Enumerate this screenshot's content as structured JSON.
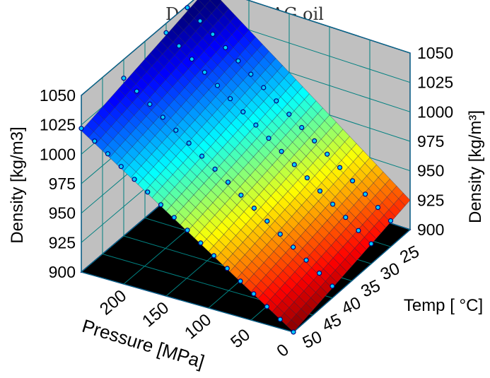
{
  "chart_data": {
    "type": "surface3d",
    "title": "Density of DAG oil",
    "xlabel": "Pressure [MPa]",
    "ylabel": "Temp [ °C]",
    "zlabel_left": "Density [kg/m3]",
    "zlabel_right": "Density [kg/m³]",
    "x_ticks": [
      "0",
      "50",
      "100",
      "150",
      "200"
    ],
    "y_ticks": [
      "25",
      "30",
      "35",
      "40",
      "45",
      "50"
    ],
    "z_ticks": [
      "900",
      "925",
      "950",
      "975",
      "1000",
      "1025",
      "1050"
    ],
    "xlim": [
      0,
      250
    ],
    "ylim": [
      20,
      50
    ],
    "zlim": [
      900,
      1050
    ],
    "colormap": "jet",
    "surface": {
      "description_points": [
        {
          "pressure": 0,
          "temp": 20,
          "density": 925
        },
        {
          "pressure": 0,
          "temp": 50,
          "density": 900
        },
        {
          "pressure": 250,
          "temp": 20,
          "density": 1050
        },
        {
          "pressure": 250,
          "temp": 50,
          "density": 1020
        }
      ]
    },
    "measured_lines": [
      {
        "temp": 25,
        "pressure": [
          0,
          250
        ],
        "density": [
          922,
          1048
        ]
      },
      {
        "temp": 30,
        "pressure": [
          0,
          250
        ],
        "density": [
          917,
          1042
        ]
      },
      {
        "temp": 40,
        "pressure": [
          0,
          250
        ],
        "density": [
          910,
          1034
        ]
      },
      {
        "temp": 50,
        "pressure": [
          0,
          250
        ],
        "density": [
          900,
          1022
        ]
      }
    ],
    "colors": {
      "floor": "#000000",
      "wall": "#c0c0c0",
      "grid": "#008080",
      "axis": "#000080",
      "marker_fill": "#00ccff",
      "marker_edge": "#00007f"
    }
  }
}
